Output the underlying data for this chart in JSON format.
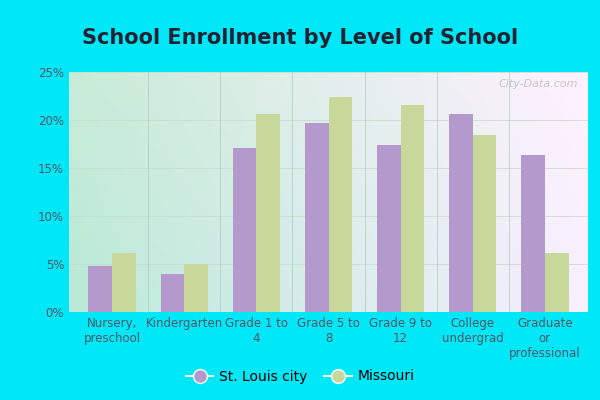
{
  "title": "School Enrollment by Level of School",
  "categories": [
    "Nursery,\npreschool",
    "Kindergarten",
    "Grade 1 to\n4",
    "Grade 5 to\n8",
    "Grade 9 to\n12",
    "College\nundergrad",
    "Graduate\nor\nprofessional"
  ],
  "stlouis_values": [
    4.8,
    4.0,
    17.1,
    19.7,
    17.4,
    20.6,
    16.4
  ],
  "missouri_values": [
    6.1,
    5.0,
    20.6,
    22.4,
    21.6,
    18.4,
    6.1
  ],
  "stlouis_color": "#b399cc",
  "missouri_color": "#c8d89a",
  "outer_background": "#00e8f8",
  "plot_bg_left": "#c8ecd8",
  "plot_bg_right": "#f0faf4",
  "ylim": [
    0,
    25
  ],
  "yticks": [
    0,
    5,
    10,
    15,
    20,
    25
  ],
  "legend_labels": [
    "St. Louis city",
    "Missouri"
  ],
  "title_fontsize": 15,
  "tick_fontsize": 8.5,
  "legend_fontsize": 10,
  "bar_width": 0.33,
  "separator_color": "#aaccbb",
  "grid_color": "#c5ddc8",
  "watermark": "City-Data.com",
  "watermark_color": "#aaaaaa"
}
